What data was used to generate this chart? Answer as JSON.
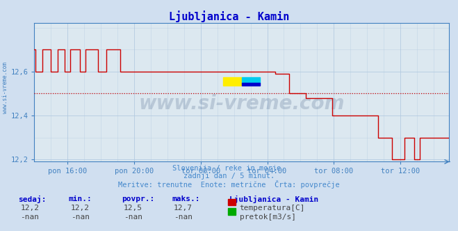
{
  "title": "Ljubljanica - Kamin",
  "title_color": "#0000cc",
  "bg_color": "#d0dff0",
  "plot_bg_color": "#dce8f0",
  "grid_color": "#b0c8e0",
  "line_color": "#cc0000",
  "avg_line_color": "#cc0000",
  "avg_value": 12.5,
  "y_min": 12.19,
  "y_max": 12.82,
  "y_ticks": [
    12.2,
    12.4,
    12.6
  ],
  "y_tick_labels": [
    "12,2",
    "12,4",
    "12,6"
  ],
  "x_tick_labels": [
    "pon 16:00",
    "pon 20:00",
    "tor 00:00",
    "tor 04:00",
    "tor 08:00",
    "tor 12:00"
  ],
  "subtitle1": "Slovenija / reke in morje.",
  "subtitle2": "zadnji dan / 5 minut.",
  "subtitle3": "Meritve: trenutne  Enote: metrične  Črta: povprečje",
  "subtitle_color": "#4488cc",
  "footer_label_color": "#0000cc",
  "sedaj_label": "sedaj:",
  "min_label": "min.:",
  "povpr_label": "povpr.:",
  "maks_label": "maks.:",
  "sedaj_val": "12,2",
  "min_val": "12,2",
  "povpr_val": "12,5",
  "maks_val": "12,7",
  "nan_val": "-nan",
  "station_name": "Ljubljanica - Kamin",
  "legend1_color": "#cc0000",
  "legend1_label": "temperatura[C]",
  "legend2_color": "#00aa00",
  "legend2_label": "pretok[m3/s]",
  "watermark": "www.si-vreme.com",
  "watermark_color": "#1a3a6a",
  "watermark_alpha": 0.18,
  "axis_color": "#4080c0",
  "tick_color": "#4080c0"
}
